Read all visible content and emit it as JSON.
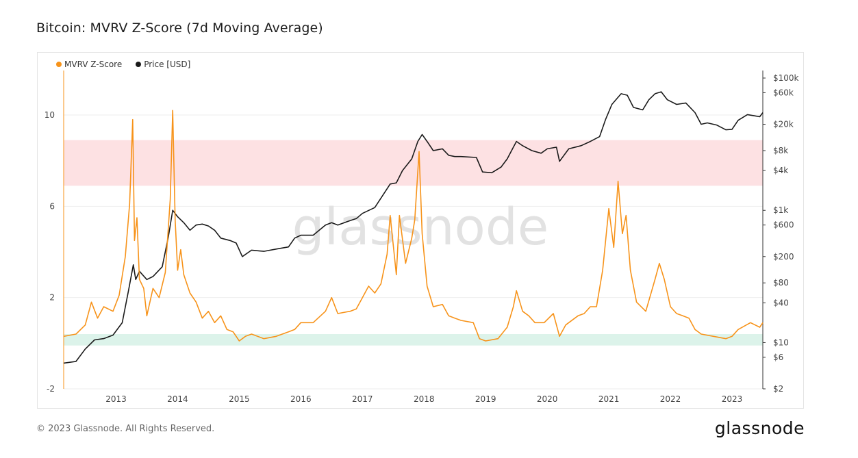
{
  "page": {
    "title": "Bitcoin: MVRV Z-Score (7d Moving Average)",
    "footer": "© 2023 Glassnode. All Rights Reserved.",
    "brand": "glassnode",
    "watermark": "glassnode"
  },
  "chart_data": {
    "type": "line",
    "title": "Bitcoin: MVRV Z-Score (7d Moving Average)",
    "legend_position": "top-left",
    "grid": true,
    "colors": {
      "zscore": "#f7931a",
      "price": "#1a1a1a",
      "red_zone": "#fde1e3",
      "green_zone": "#dcf3ea"
    },
    "x_ticks": [
      "2013",
      "2014",
      "2015",
      "2016",
      "2017",
      "2018",
      "2019",
      "2020",
      "2021",
      "2022",
      "2023"
    ],
    "xlim": [
      2012.15,
      2023.5
    ],
    "y_left": {
      "ticks": [
        -2,
        2,
        6,
        10
      ],
      "ylim": [
        -2,
        11.95
      ]
    },
    "y_right": {
      "scale": "log",
      "ticks": [
        2,
        6,
        10,
        40,
        80,
        200,
        600,
        1000,
        4000,
        8000,
        20000,
        60000,
        100000
      ],
      "tick_labels": [
        "$2",
        "$6",
        "$10",
        "$40",
        "$80",
        "$200",
        "$600",
        "$1k",
        "$4k",
        "$8k",
        "$20k",
        "$60k",
        "$100k"
      ],
      "ylim": [
        2,
        130000
      ]
    },
    "zones": [
      {
        "name": "red",
        "axis": "left",
        "from": 6.9,
        "to": 8.9
      },
      {
        "name": "green",
        "axis": "left",
        "from": -0.1,
        "to": 0.4
      }
    ],
    "series": [
      {
        "name": "MVRV Z-Score",
        "axis": "left",
        "points": [
          [
            2012.15,
            0.3
          ],
          [
            2012.35,
            0.4
          ],
          [
            2012.5,
            0.8
          ],
          [
            2012.6,
            1.8
          ],
          [
            2012.7,
            1.1
          ],
          [
            2012.8,
            1.6
          ],
          [
            2012.95,
            1.4
          ],
          [
            2013.05,
            2.1
          ],
          [
            2013.15,
            3.8
          ],
          [
            2013.22,
            6.1
          ],
          [
            2013.27,
            9.8
          ],
          [
            2013.3,
            4.5
          ],
          [
            2013.34,
            5.5
          ],
          [
            2013.38,
            2.8
          ],
          [
            2013.45,
            2.4
          ],
          [
            2013.5,
            1.2
          ],
          [
            2013.6,
            2.4
          ],
          [
            2013.7,
            2.0
          ],
          [
            2013.8,
            3.1
          ],
          [
            2013.88,
            6.3
          ],
          [
            2013.92,
            10.2
          ],
          [
            2013.96,
            5.4
          ],
          [
            2014.0,
            3.2
          ],
          [
            2014.05,
            4.1
          ],
          [
            2014.1,
            3.0
          ],
          [
            2014.2,
            2.2
          ],
          [
            2014.3,
            1.8
          ],
          [
            2014.4,
            1.1
          ],
          [
            2014.5,
            1.4
          ],
          [
            2014.6,
            0.9
          ],
          [
            2014.7,
            1.2
          ],
          [
            2014.8,
            0.6
          ],
          [
            2014.9,
            0.5
          ],
          [
            2015.0,
            0.1
          ],
          [
            2015.1,
            0.3
          ],
          [
            2015.2,
            0.4
          ],
          [
            2015.4,
            0.2
          ],
          [
            2015.6,
            0.3
          ],
          [
            2015.8,
            0.5
          ],
          [
            2015.9,
            0.6
          ],
          [
            2016.0,
            0.9
          ],
          [
            2016.2,
            0.9
          ],
          [
            2016.4,
            1.4
          ],
          [
            2016.5,
            2.0
          ],
          [
            2016.6,
            1.3
          ],
          [
            2016.8,
            1.4
          ],
          [
            2016.9,
            1.5
          ],
          [
            2017.0,
            2.0
          ],
          [
            2017.1,
            2.5
          ],
          [
            2017.2,
            2.2
          ],
          [
            2017.3,
            2.6
          ],
          [
            2017.4,
            3.9
          ],
          [
            2017.45,
            5.6
          ],
          [
            2017.55,
            3.0
          ],
          [
            2017.6,
            5.6
          ],
          [
            2017.7,
            3.5
          ],
          [
            2017.8,
            4.6
          ],
          [
            2017.85,
            5.4
          ],
          [
            2017.92,
            8.4
          ],
          [
            2017.97,
            4.8
          ],
          [
            2018.05,
            2.5
          ],
          [
            2018.15,
            1.6
          ],
          [
            2018.3,
            1.7
          ],
          [
            2018.4,
            1.2
          ],
          [
            2018.5,
            1.1
          ],
          [
            2018.6,
            1.0
          ],
          [
            2018.8,
            0.9
          ],
          [
            2018.9,
            0.2
          ],
          [
            2019.0,
            0.1
          ],
          [
            2019.2,
            0.2
          ],
          [
            2019.35,
            0.7
          ],
          [
            2019.45,
            1.6
          ],
          [
            2019.5,
            2.3
          ],
          [
            2019.6,
            1.4
          ],
          [
            2019.7,
            1.2
          ],
          [
            2019.8,
            0.9
          ],
          [
            2019.95,
            0.9
          ],
          [
            2020.1,
            1.3
          ],
          [
            2020.2,
            0.3
          ],
          [
            2020.3,
            0.8
          ],
          [
            2020.5,
            1.2
          ],
          [
            2020.6,
            1.3
          ],
          [
            2020.7,
            1.6
          ],
          [
            2020.8,
            1.6
          ],
          [
            2020.9,
            3.2
          ],
          [
            2021.0,
            5.9
          ],
          [
            2021.08,
            4.2
          ],
          [
            2021.15,
            7.1
          ],
          [
            2021.22,
            4.8
          ],
          [
            2021.28,
            5.6
          ],
          [
            2021.35,
            3.2
          ],
          [
            2021.45,
            1.8
          ],
          [
            2021.6,
            1.4
          ],
          [
            2021.75,
            2.8
          ],
          [
            2021.82,
            3.5
          ],
          [
            2021.9,
            2.8
          ],
          [
            2022.0,
            1.6
          ],
          [
            2022.1,
            1.3
          ],
          [
            2022.2,
            1.2
          ],
          [
            2022.3,
            1.1
          ],
          [
            2022.4,
            0.6
          ],
          [
            2022.5,
            0.4
          ],
          [
            2022.7,
            0.3
          ],
          [
            2022.9,
            0.2
          ],
          [
            2023.0,
            0.3
          ],
          [
            2023.1,
            0.6
          ],
          [
            2023.3,
            0.9
          ],
          [
            2023.45,
            0.7
          ],
          [
            2023.5,
            0.9
          ]
        ]
      },
      {
        "name": "Price [USD]",
        "axis": "right",
        "points": [
          [
            2012.15,
            4.9
          ],
          [
            2012.35,
            5.2
          ],
          [
            2012.5,
            8
          ],
          [
            2012.65,
            11
          ],
          [
            2012.8,
            11.5
          ],
          [
            2012.95,
            13
          ],
          [
            2013.1,
            20
          ],
          [
            2013.2,
            60
          ],
          [
            2013.28,
            150
          ],
          [
            2013.32,
            90
          ],
          [
            2013.38,
            120
          ],
          [
            2013.5,
            90
          ],
          [
            2013.6,
            100
          ],
          [
            2013.75,
            140
          ],
          [
            2013.85,
            400
          ],
          [
            2013.92,
            1000
          ],
          [
            2014.0,
            800
          ],
          [
            2014.1,
            650
          ],
          [
            2014.2,
            500
          ],
          [
            2014.3,
            600
          ],
          [
            2014.4,
            620
          ],
          [
            2014.5,
            580
          ],
          [
            2014.6,
            500
          ],
          [
            2014.7,
            380
          ],
          [
            2014.85,
            350
          ],
          [
            2014.95,
            320
          ],
          [
            2015.05,
            200
          ],
          [
            2015.2,
            250
          ],
          [
            2015.4,
            240
          ],
          [
            2015.6,
            260
          ],
          [
            2015.8,
            280
          ],
          [
            2015.9,
            380
          ],
          [
            2016.0,
            420
          ],
          [
            2016.2,
            420
          ],
          [
            2016.4,
            600
          ],
          [
            2016.5,
            650
          ],
          [
            2016.6,
            600
          ],
          [
            2016.8,
            700
          ],
          [
            2016.9,
            750
          ],
          [
            2017.0,
            900
          ],
          [
            2017.2,
            1100
          ],
          [
            2017.35,
            1800
          ],
          [
            2017.45,
            2500
          ],
          [
            2017.55,
            2600
          ],
          [
            2017.65,
            4000
          ],
          [
            2017.8,
            6000
          ],
          [
            2017.9,
            11000
          ],
          [
            2017.97,
            14000
          ],
          [
            2018.05,
            11000
          ],
          [
            2018.15,
            8000
          ],
          [
            2018.3,
            8500
          ],
          [
            2018.4,
            6800
          ],
          [
            2018.5,
            6500
          ],
          [
            2018.6,
            6500
          ],
          [
            2018.85,
            6300
          ],
          [
            2018.95,
            3800
          ],
          [
            2019.1,
            3700
          ],
          [
            2019.25,
            4500
          ],
          [
            2019.35,
            6000
          ],
          [
            2019.45,
            9000
          ],
          [
            2019.5,
            11000
          ],
          [
            2019.6,
            9500
          ],
          [
            2019.75,
            8000
          ],
          [
            2019.9,
            7300
          ],
          [
            2020.0,
            8500
          ],
          [
            2020.15,
            9000
          ],
          [
            2020.2,
            5500
          ],
          [
            2020.35,
            8500
          ],
          [
            2020.55,
            9500
          ],
          [
            2020.7,
            11000
          ],
          [
            2020.85,
            13000
          ],
          [
            2020.95,
            24000
          ],
          [
            2021.05,
            40000
          ],
          [
            2021.2,
            58000
          ],
          [
            2021.3,
            55000
          ],
          [
            2021.4,
            36000
          ],
          [
            2021.55,
            33000
          ],
          [
            2021.65,
            47000
          ],
          [
            2021.75,
            58000
          ],
          [
            2021.85,
            62000
          ],
          [
            2021.95,
            47000
          ],
          [
            2022.1,
            40000
          ],
          [
            2022.25,
            42000
          ],
          [
            2022.4,
            30000
          ],
          [
            2022.5,
            20000
          ],
          [
            2022.6,
            21000
          ],
          [
            2022.75,
            19500
          ],
          [
            2022.9,
            16500
          ],
          [
            2023.0,
            16800
          ],
          [
            2023.1,
            23000
          ],
          [
            2023.25,
            28000
          ],
          [
            2023.35,
            27000
          ],
          [
            2023.45,
            26000
          ],
          [
            2023.5,
            30000
          ]
        ]
      }
    ]
  }
}
